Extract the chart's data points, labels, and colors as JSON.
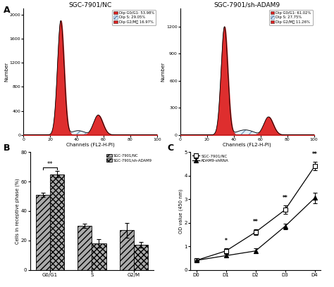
{
  "panel_A_left": {
    "title": "SGC-7901/NC",
    "legend": [
      {
        "label": "Dip G0/G1: 53.98%",
        "color": "#dd2222",
        "hatch": ""
      },
      {
        "label": "Dip S: 29.05%",
        "color": "white",
        "hatch": "///"
      },
      {
        "label": "Dip G2/M： 16.97%",
        "color": "#dd2222",
        "hatch": ""
      }
    ],
    "peak1_x": 28,
    "peak1_y": 1900,
    "peak1_sigma": 2.5,
    "peak2_x": 56,
    "peak2_y": 330,
    "peak2_sigma": 3.5,
    "s_level": 70,
    "ylim": [
      0,
      2100
    ],
    "yticks": [
      0,
      400,
      800,
      1200,
      1600,
      2000
    ],
    "xlim": [
      0,
      100
    ],
    "xticks": [
      0,
      20,
      40,
      60,
      80,
      100
    ]
  },
  "panel_A_right": {
    "title": "SGC-7901/sh-ADAM9",
    "legend": [
      {
        "label": "Dip G0/G1: 61.02%",
        "color": "#dd2222",
        "hatch": ""
      },
      {
        "label": "Dip S: 27.75%",
        "color": "white",
        "hatch": "///"
      },
      {
        "label": "Dip G2/M： 11.26%",
        "color": "#dd2222",
        "hatch": ""
      }
    ],
    "peak1_x": 33,
    "peak1_y": 1200,
    "peak1_sigma": 2.5,
    "peak2_x": 66,
    "peak2_y": 200,
    "peak2_sigma": 3.5,
    "s_level": 55,
    "ylim": [
      0,
      1400
    ],
    "yticks": [
      0,
      300,
      600,
      900,
      1200
    ],
    "xlim": [
      0,
      100
    ],
    "xticks": [
      0,
      20,
      40,
      60,
      80,
      100
    ]
  },
  "panel_B": {
    "categories": [
      "G0/G1",
      "S",
      "G2/M"
    ],
    "NC_values": [
      51,
      30,
      27
    ],
    "NC_errors": [
      1.5,
      1.5,
      5
    ],
    "shADAM9_values": [
      65,
      18,
      17
    ],
    "shADAM9_errors": [
      2,
      3,
      2
    ],
    "ylabel": "Cells in receptive phase (%)",
    "ylim": [
      0,
      80
    ],
    "yticks": [
      0,
      20,
      40,
      60,
      80
    ],
    "significance_idx": 0,
    "significance_label": "**",
    "legend_labels": [
      "SGC-7901/NC",
      "SGC-7901/sh-ADAM9"
    ]
  },
  "panel_C": {
    "days": [
      "D0",
      "D1",
      "D2",
      "D3",
      "D4"
    ],
    "NC_values": [
      0.4,
      0.8,
      1.6,
      2.55,
      4.4
    ],
    "NC_errors": [
      0.05,
      0.12,
      0.12,
      0.18,
      0.18
    ],
    "shRNA_values": [
      0.4,
      0.6,
      0.8,
      1.85,
      3.05
    ],
    "shRNA_errors": [
      0.05,
      0.08,
      0.1,
      0.12,
      0.22
    ],
    "ylabel": "OD value (450 nm)",
    "ylim": [
      0,
      5
    ],
    "yticks": [
      0,
      1,
      2,
      3,
      4,
      5
    ],
    "significance": {
      "1": "*",
      "2": "**",
      "3": "**",
      "4": "**"
    },
    "legend_labels": [
      "SGC-7901/NC",
      "ADAM9-shRNA"
    ]
  }
}
